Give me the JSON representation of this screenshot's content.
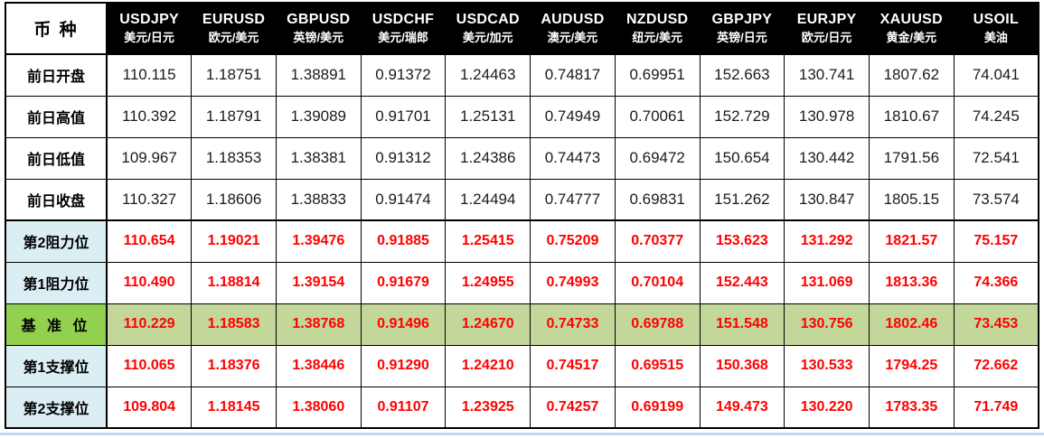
{
  "table": {
    "corner_label": "币 种",
    "colors": {
      "header_bg": "#000000",
      "header_text": "#ffffff",
      "value_text": "#1a1a1a",
      "pivot_value_red": "#ff0000",
      "label_light_blue": "#dbeef4",
      "pivot_label_green": "#92d050",
      "pivot_row_green": "#c4d79b",
      "border": "#000000",
      "window_edge_blue": "#bdd7ee"
    }
  },
  "chart_data": {
    "type": "table",
    "columns": [
      {
        "code": "USDJPY",
        "name": "美元/日元"
      },
      {
        "code": "EURUSD",
        "name": "欧元/美元"
      },
      {
        "code": "GBPUSD",
        "name": "英镑/美元"
      },
      {
        "code": "USDCHF",
        "name": "美元/瑞郎"
      },
      {
        "code": "USDCAD",
        "name": "美元/加元"
      },
      {
        "code": "AUDUSD",
        "name": "澳元/美元"
      },
      {
        "code": "NZDUSD",
        "name": "纽元/美元"
      },
      {
        "code": "GBPJPY",
        "name": "英镑/日元"
      },
      {
        "code": "EURJPY",
        "name": "欧元/日元"
      },
      {
        "code": "XAUUSD",
        "name": "黄金/美元"
      },
      {
        "code": "USOIL",
        "name": "美油"
      }
    ],
    "rows": [
      {
        "label": "前日开盘",
        "type": "normal",
        "values": [
          "110.115",
          "1.18751",
          "1.38891",
          "0.91372",
          "1.24463",
          "0.74817",
          "0.69951",
          "152.663",
          "130.741",
          "1807.62",
          "74.041"
        ]
      },
      {
        "label": "前日高值",
        "type": "normal",
        "values": [
          "110.392",
          "1.18791",
          "1.39089",
          "0.91701",
          "1.25131",
          "0.74949",
          "0.70061",
          "152.729",
          "130.978",
          "1810.67",
          "74.245"
        ]
      },
      {
        "label": "前日低值",
        "type": "normal",
        "values": [
          "109.967",
          "1.18353",
          "1.38381",
          "0.91312",
          "1.24386",
          "0.74473",
          "0.69472",
          "150.654",
          "130.442",
          "1791.56",
          "72.541"
        ]
      },
      {
        "label": "前日收盘",
        "type": "normal",
        "values": [
          "110.327",
          "1.18606",
          "1.38833",
          "0.91474",
          "1.24494",
          "0.74777",
          "0.69831",
          "151.262",
          "130.847",
          "1805.15",
          "73.574"
        ]
      },
      {
        "label": "第2阻力位",
        "type": "resistance",
        "values": [
          "110.654",
          "1.19021",
          "1.39476",
          "0.91885",
          "1.25415",
          "0.75209",
          "0.70377",
          "153.623",
          "131.292",
          "1821.57",
          "75.157"
        ]
      },
      {
        "label": "第1阻力位",
        "type": "resistance",
        "values": [
          "110.490",
          "1.18814",
          "1.39154",
          "0.91679",
          "1.24955",
          "0.74993",
          "0.70104",
          "152.443",
          "131.069",
          "1813.36",
          "74.366"
        ]
      },
      {
        "label": "基 准 位",
        "type": "pivot",
        "values": [
          "110.229",
          "1.18583",
          "1.38768",
          "0.91496",
          "1.24670",
          "0.74733",
          "0.69788",
          "151.548",
          "130.756",
          "1802.46",
          "73.453"
        ]
      },
      {
        "label": "第1支撑位",
        "type": "support",
        "values": [
          "110.065",
          "1.18376",
          "1.38446",
          "0.91290",
          "1.24210",
          "0.74517",
          "0.69515",
          "150.368",
          "130.533",
          "1794.25",
          "72.662"
        ]
      },
      {
        "label": "第2支撑位",
        "type": "support",
        "values": [
          "109.804",
          "1.18145",
          "1.38060",
          "0.91107",
          "1.23925",
          "0.74257",
          "0.69199",
          "149.473",
          "130.220",
          "1783.35",
          "71.749"
        ]
      }
    ]
  }
}
